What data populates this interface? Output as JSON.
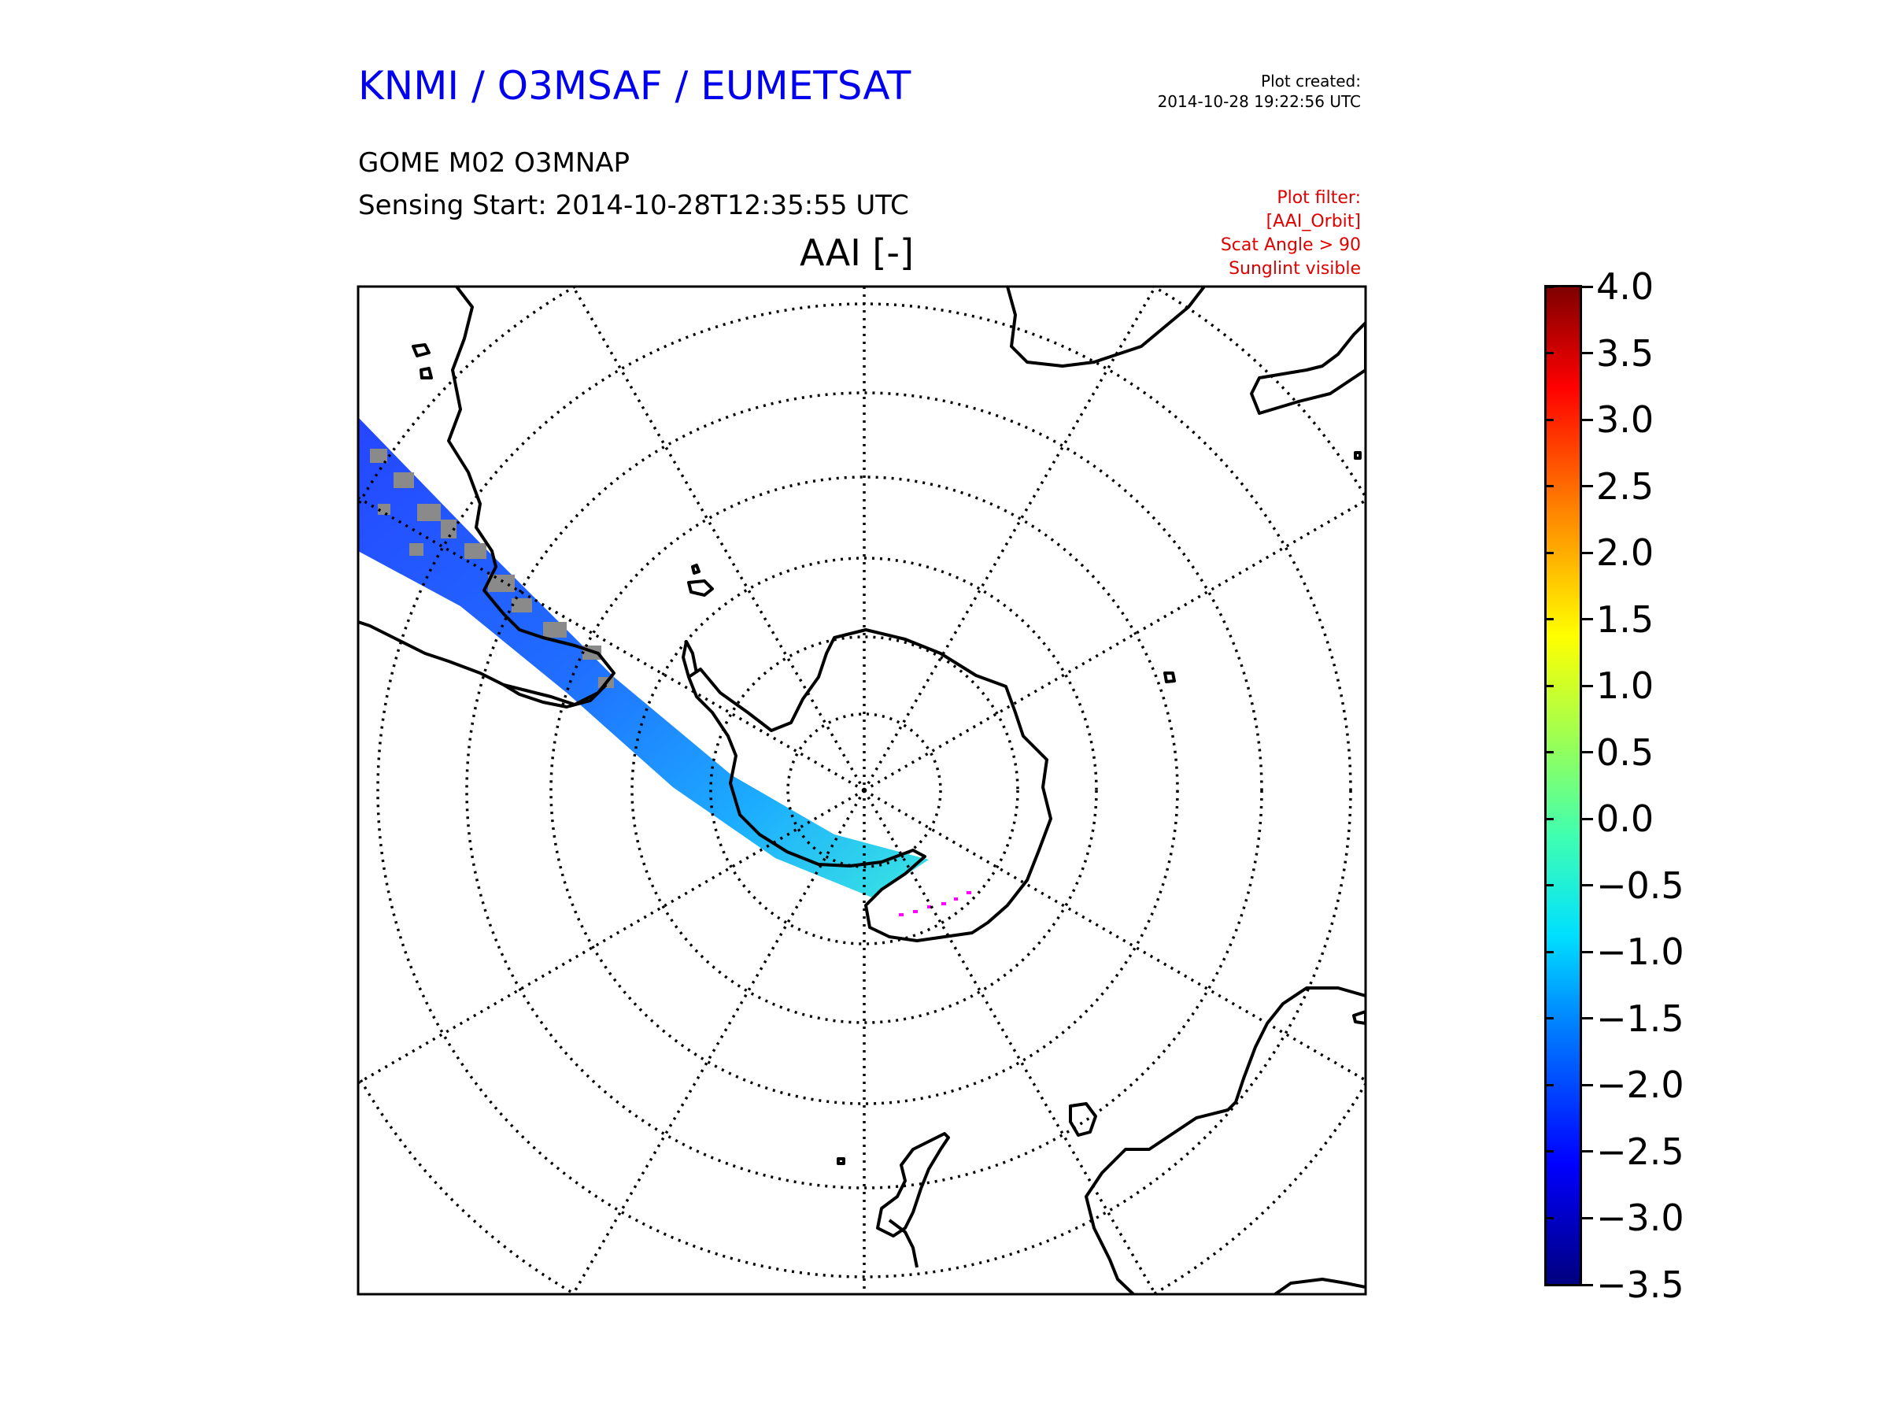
{
  "header": {
    "org_title": "KNMI / O3MSAF / EUMETSAT",
    "product": "GOME M02 O3MNAP",
    "sensing_start": "Sensing Start: 2014-10-28T12:35:55 UTC",
    "plot_created_label": "Plot created:",
    "plot_created_time": "2014-10-28 19:22:56 UTC"
  },
  "plot_filter": {
    "title": "Plot filter:",
    "lines": [
      "[AAI_Orbit]",
      "Scat Angle > 90",
      "Sunglint visible"
    ]
  },
  "map": {
    "title": "AAI [-]",
    "projection": "south polar stereographic",
    "colors": {
      "coast": "#000000",
      "grid": "#000000",
      "swath_low": "#0030ff",
      "swath_mid": "#00c0ff",
      "swath_cloud": "#808080",
      "flag": "#ff00ff"
    }
  },
  "colorbar": {
    "min": -3.5,
    "max": 4.0,
    "tick_labels": [
      "4.0",
      "3.5",
      "3.0",
      "2.5",
      "2.0",
      "1.5",
      "1.0",
      "0.5",
      "0.0",
      "−0.5",
      "−1.0",
      "−1.5",
      "−2.0",
      "−2.5",
      "−3.0",
      "−3.5"
    ],
    "tick_values": [
      4.0,
      3.5,
      3.0,
      2.5,
      2.0,
      1.5,
      1.0,
      0.5,
      0.0,
      -0.5,
      -1.0,
      -1.5,
      -2.0,
      -2.5,
      -3.0,
      -3.5
    ]
  }
}
